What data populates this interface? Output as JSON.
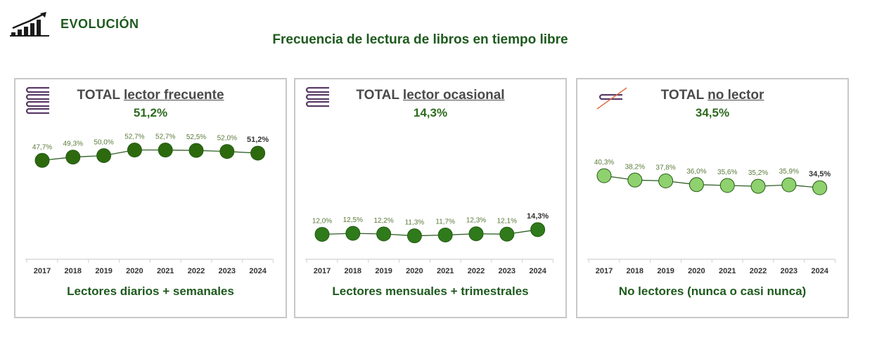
{
  "header": {
    "section": "EVOLUCIÓN",
    "title": "Frecuencia de lectura de libros en tiempo libre"
  },
  "colors": {
    "dark_green": "#1e5a1e",
    "frequent": "#2d6a0e",
    "occasional": "#2f7a1a",
    "nonreader": "#8ed16e",
    "book_icon": "#5a3a66",
    "cross_out": "#e0704a"
  },
  "panels": [
    {
      "title_prefix": "TOTAL",
      "title_emph": "lector frecuente",
      "value": "51,2%",
      "footer": "Lectores diarios + semanales"
    },
    {
      "title_prefix": "TOTAL",
      "title_emph": "lector ocasional",
      "value": "14,3%",
      "footer": "Lectores mensuales + trimestrales"
    },
    {
      "title_prefix": "TOTAL",
      "title_emph": "no lector",
      "value": "34,5%",
      "footer": "No lectores (nunca o casi nunca)"
    }
  ],
  "chart_data": [
    {
      "type": "line",
      "title": "TOTAL lector frecuente",
      "categories": [
        "2017",
        "2018",
        "2019",
        "2020",
        "2021",
        "2022",
        "2023",
        "2024"
      ],
      "values": [
        47.7,
        49.3,
        50.0,
        52.7,
        52.7,
        52.5,
        52.0,
        51.2
      ],
      "labels": [
        "47,7%",
        "49,3%",
        "50,0%",
        "52,7%",
        "52,7%",
        "52,5%",
        "52,0%",
        "51,2%"
      ],
      "ylim": [
        0,
        60
      ],
      "marker_color": "#2d6a0e"
    },
    {
      "type": "line",
      "title": "TOTAL lector ocasional",
      "categories": [
        "2017",
        "2018",
        "2019",
        "2020",
        "2021",
        "2022",
        "2023",
        "2024"
      ],
      "values": [
        12.0,
        12.5,
        12.2,
        11.3,
        11.7,
        12.3,
        12.1,
        14.3
      ],
      "labels": [
        "12,0%",
        "12,5%",
        "12,2%",
        "11,3%",
        "11,7%",
        "12,3%",
        "12,1%",
        "14,3%"
      ],
      "ylim": [
        0,
        60
      ],
      "marker_color": "#2f7a1a"
    },
    {
      "type": "line",
      "title": "TOTAL no lector",
      "categories": [
        "2017",
        "2018",
        "2019",
        "2020",
        "2021",
        "2022",
        "2023",
        "2024"
      ],
      "values": [
        40.3,
        38.2,
        37.8,
        36.0,
        35.6,
        35.2,
        35.9,
        34.5
      ],
      "labels": [
        "40,3%",
        "38,2%",
        "37,8%",
        "36,0%",
        "35,6%",
        "35,2%",
        "35,9%",
        "34,5%"
      ],
      "ylim": [
        0,
        60
      ],
      "marker_color": "#8ed16e"
    }
  ]
}
